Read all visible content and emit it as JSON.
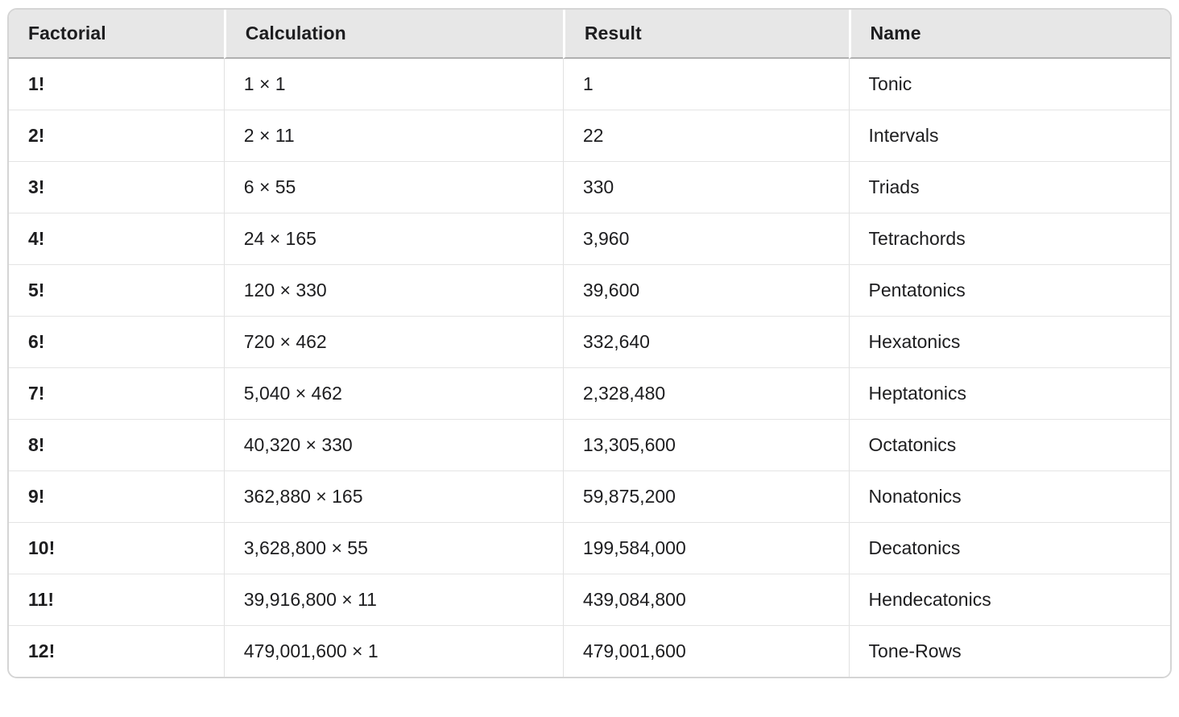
{
  "colors": {
    "page_background": "#ffffff",
    "header_background": "#e7e7e7",
    "header_bottom_rule": "#b0b0b0",
    "grid_line": "#e4e4e4",
    "outer_border": "#d5d5d5",
    "text": "#1d1d1f"
  },
  "table": {
    "columns": [
      {
        "key": "factorial",
        "label": "Factorial"
      },
      {
        "key": "calculation",
        "label": "Calculation"
      },
      {
        "key": "result",
        "label": "Result"
      },
      {
        "key": "name",
        "label": "Name"
      }
    ],
    "rows": [
      {
        "factorial": "1!",
        "calculation": "1 × 1",
        "result": "1",
        "name": "Tonic"
      },
      {
        "factorial": "2!",
        "calculation": "2 × 11",
        "result": "22",
        "name": "Intervals"
      },
      {
        "factorial": "3!",
        "calculation": "6 × 55",
        "result": "330",
        "name": "Triads"
      },
      {
        "factorial": "4!",
        "calculation": "24 × 165",
        "result": "3,960",
        "name": "Tetrachords"
      },
      {
        "factorial": "5!",
        "calculation": "120 × 330",
        "result": "39,600",
        "name": "Pentatonics"
      },
      {
        "factorial": "6!",
        "calculation": "720 × 462",
        "result": "332,640",
        "name": "Hexatonics"
      },
      {
        "factorial": "7!",
        "calculation": "5,040 × 462",
        "result": "2,328,480",
        "name": "Heptatonics"
      },
      {
        "factorial": "8!",
        "calculation": "40,320 × 330",
        "result": "13,305,600",
        "name": "Octatonics"
      },
      {
        "factorial": "9!",
        "calculation": "362,880 × 165",
        "result": "59,875,200",
        "name": "Nonatonics"
      },
      {
        "factorial": "10!",
        "calculation": "3,628,800 × 55",
        "result": "199,584,000",
        "name": "Decatonics"
      },
      {
        "factorial": "11!",
        "calculation": "39,916,800 × 11",
        "result": "439,084,800",
        "name": "Hendecatonics"
      },
      {
        "factorial": "12!",
        "calculation": "479,001,600 × 1",
        "result": "479,001,600",
        "name": "Tone-Rows"
      }
    ]
  }
}
